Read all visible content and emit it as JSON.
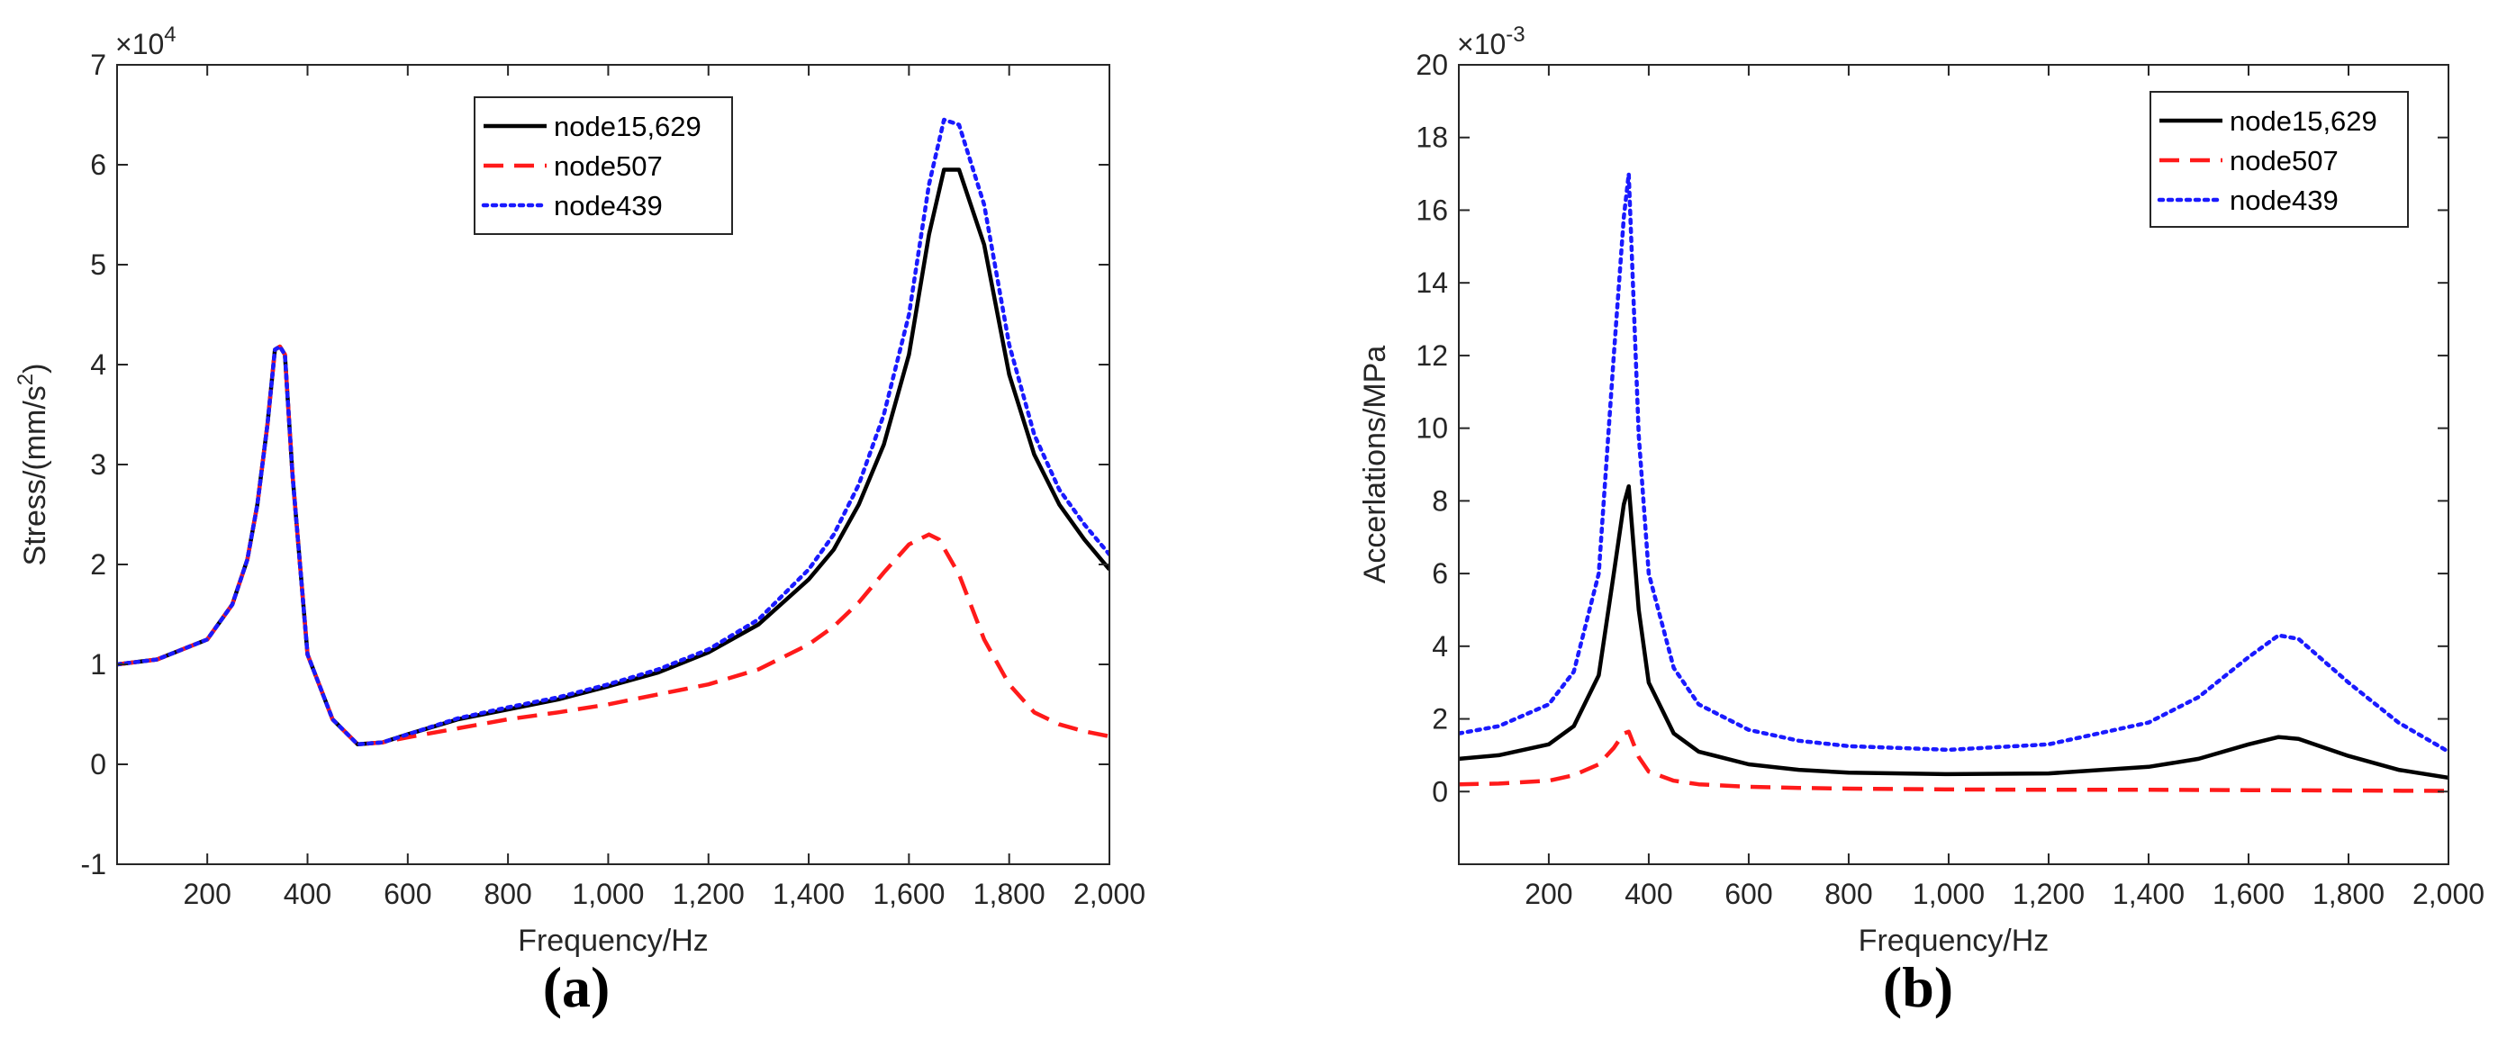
{
  "chart_data": [
    {
      "type": "line",
      "panel_label": "(a)",
      "title": "",
      "xlabel": "Frequency/Hz",
      "ylabel": "Stress/(mm/s²)",
      "ylabel_main": "Stress/(mm/s",
      "ylabel_sup": "2",
      "ylabel_close": ")",
      "y_multiplier": "×10",
      "y_multiplier_exp": "4",
      "xlim": [
        20,
        2000
      ],
      "ylim": [
        -1,
        7
      ],
      "xticks": [
        200,
        400,
        600,
        800,
        1000,
        1200,
        1400,
        1600,
        1800,
        2000
      ],
      "xtick_labels": [
        "200",
        "400",
        "600",
        "800",
        "1,000",
        "1,200",
        "1,400",
        "1,600",
        "1,800",
        "2,000"
      ],
      "yticks": [
        -1,
        0,
        1,
        2,
        3,
        4,
        5,
        6,
        7
      ],
      "ytick_labels": [
        "-1",
        "0",
        "1",
        "2",
        "3",
        "4",
        "5",
        "6",
        "7"
      ],
      "legend_position": "top-center",
      "series": [
        {
          "name": "node15,629",
          "color": "#000000",
          "dash": "solid",
          "x": [
            20,
            100,
            200,
            250,
            280,
            300,
            320,
            335,
            345,
            355,
            370,
            400,
            450,
            500,
            550,
            600,
            700,
            800,
            900,
            1000,
            1100,
            1200,
            1300,
            1400,
            1450,
            1500,
            1550,
            1600,
            1640,
            1670,
            1700,
            1750,
            1800,
            1850,
            1900,
            1950,
            2000
          ],
          "y": [
            1.0,
            1.05,
            1.25,
            1.6,
            2.05,
            2.6,
            3.4,
            4.15,
            4.18,
            4.1,
            2.9,
            1.1,
            0.45,
            0.2,
            0.22,
            0.3,
            0.45,
            0.55,
            0.65,
            0.78,
            0.92,
            1.12,
            1.4,
            1.85,
            2.15,
            2.6,
            3.2,
            4.1,
            5.3,
            5.95,
            5.95,
            5.2,
            3.9,
            3.1,
            2.6,
            2.25,
            1.95
          ]
        },
        {
          "name": "node507",
          "color": "#ff1a1a",
          "dash": "dashed",
          "x": [
            20,
            100,
            200,
            250,
            280,
            300,
            320,
            335,
            345,
            355,
            370,
            400,
            450,
            500,
            550,
            600,
            700,
            800,
            900,
            1000,
            1100,
            1200,
            1300,
            1400,
            1450,
            1500,
            1550,
            1600,
            1640,
            1660,
            1700,
            1750,
            1800,
            1850,
            1900,
            1950,
            2000
          ],
          "y": [
            1.0,
            1.05,
            1.25,
            1.6,
            2.05,
            2.6,
            3.4,
            4.15,
            4.18,
            4.1,
            2.9,
            1.1,
            0.45,
            0.2,
            0.22,
            0.27,
            0.36,
            0.45,
            0.52,
            0.6,
            0.7,
            0.8,
            0.95,
            1.2,
            1.38,
            1.62,
            1.92,
            2.2,
            2.3,
            2.25,
            1.9,
            1.25,
            0.8,
            0.52,
            0.4,
            0.33,
            0.28
          ]
        },
        {
          "name": "node439",
          "color": "#1a1aff",
          "dash": "dotted",
          "x": [
            20,
            100,
            200,
            250,
            280,
            300,
            320,
            335,
            345,
            355,
            370,
            400,
            450,
            500,
            550,
            600,
            700,
            800,
            900,
            1000,
            1100,
            1200,
            1300,
            1400,
            1450,
            1500,
            1550,
            1600,
            1640,
            1670,
            1700,
            1750,
            1800,
            1850,
            1900,
            1950,
            2000
          ],
          "y": [
            1.0,
            1.05,
            1.25,
            1.6,
            2.05,
            2.6,
            3.4,
            4.15,
            4.18,
            4.1,
            2.9,
            1.1,
            0.45,
            0.2,
            0.22,
            0.3,
            0.46,
            0.57,
            0.67,
            0.8,
            0.95,
            1.15,
            1.45,
            1.95,
            2.3,
            2.8,
            3.5,
            4.5,
            5.8,
            6.45,
            6.4,
            5.6,
            4.2,
            3.3,
            2.75,
            2.4,
            2.1
          ]
        }
      ]
    },
    {
      "type": "line",
      "panel_label": "(b)",
      "title": "",
      "xlabel": "Frequency/Hz",
      "ylabel": "Accerlations/MPa",
      "y_multiplier": "×10",
      "y_multiplier_exp": "-3",
      "xlim": [
        20,
        2000
      ],
      "ylim": [
        -2,
        20
      ],
      "xticks": [
        200,
        400,
        600,
        800,
        1000,
        1200,
        1400,
        1600,
        1800,
        2000
      ],
      "xtick_labels": [
        "200",
        "400",
        "600",
        "800",
        "1,000",
        "1,200",
        "1,400",
        "1,600",
        "1,800",
        "2,000"
      ],
      "yticks": [
        0,
        2,
        4,
        6,
        8,
        10,
        12,
        14,
        16,
        18,
        20
      ],
      "ytick_labels": [
        "0",
        "2",
        "4",
        "6",
        "8",
        "10",
        "12",
        "14",
        "16",
        "18",
        "20"
      ],
      "legend_position": "top-right",
      "series": [
        {
          "name": "node15,629",
          "color": "#000000",
          "dash": "solid",
          "x": [
            20,
            100,
            200,
            250,
            300,
            330,
            350,
            360,
            380,
            400,
            450,
            500,
            600,
            700,
            800,
            1000,
            1200,
            1400,
            1500,
            1600,
            1660,
            1700,
            1800,
            1900,
            2000
          ],
          "y": [
            0.9,
            1.0,
            1.3,
            1.8,
            3.2,
            6.0,
            7.9,
            8.4,
            5.0,
            3.0,
            1.6,
            1.1,
            0.75,
            0.6,
            0.52,
            0.48,
            0.5,
            0.68,
            0.9,
            1.3,
            1.5,
            1.45,
            0.98,
            0.6,
            0.38
          ]
        },
        {
          "name": "node507",
          "color": "#ff1a1a",
          "dash": "dashed",
          "x": [
            20,
            100,
            200,
            250,
            300,
            330,
            350,
            360,
            380,
            400,
            450,
            500,
            600,
            700,
            800,
            1000,
            1200,
            1400,
            1600,
            1800,
            2000
          ],
          "y": [
            0.2,
            0.22,
            0.3,
            0.45,
            0.75,
            1.2,
            1.6,
            1.65,
            0.95,
            0.55,
            0.3,
            0.2,
            0.13,
            0.1,
            0.08,
            0.06,
            0.05,
            0.05,
            0.04,
            0.03,
            0.02
          ]
        },
        {
          "name": "node439",
          "color": "#1a1aff",
          "dash": "dotted",
          "x": [
            20,
            100,
            200,
            250,
            300,
            330,
            350,
            360,
            380,
            400,
            450,
            500,
            600,
            700,
            800,
            1000,
            1200,
            1400,
            1500,
            1600,
            1660,
            1700,
            1800,
            1900,
            2000
          ],
          "y": [
            1.6,
            1.8,
            2.4,
            3.3,
            6.0,
            12.0,
            15.8,
            17.0,
            9.8,
            6.0,
            3.4,
            2.4,
            1.7,
            1.4,
            1.25,
            1.15,
            1.3,
            1.9,
            2.6,
            3.7,
            4.3,
            4.2,
            3.0,
            1.9,
            1.1
          ]
        }
      ]
    }
  ]
}
